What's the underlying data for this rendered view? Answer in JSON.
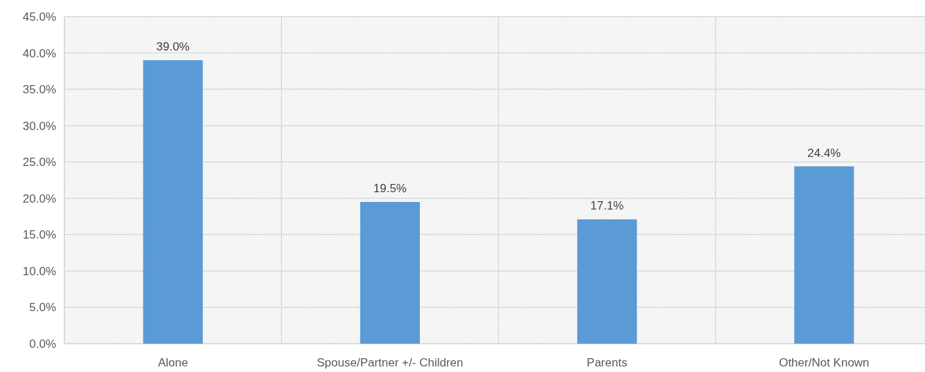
{
  "chart_data": {
    "type": "bar",
    "categories": [
      "Alone",
      "Spouse/Partner +/- Children",
      "Parents",
      "Other/Not Known"
    ],
    "values": [
      39.0,
      19.5,
      17.1,
      24.4
    ],
    "value_labels": [
      "39.0%",
      "19.5%",
      "17.1%",
      "24.4%"
    ],
    "color": "#5b9bd5",
    "ylim": [
      0,
      45
    ],
    "yticks": [
      {
        "value": 0,
        "label": "0.0%"
      },
      {
        "value": 5,
        "label": "5.0%"
      },
      {
        "value": 10,
        "label": "10.0%"
      },
      {
        "value": 15,
        "label": "15.0%"
      },
      {
        "value": 20,
        "label": "20.0%"
      },
      {
        "value": 25,
        "label": "25.0%"
      },
      {
        "value": 30,
        "label": "30.0%"
      },
      {
        "value": 35,
        "label": "35.0%"
      },
      {
        "value": 40,
        "label": "40.0%"
      },
      {
        "value": 45,
        "label": "45.0%"
      }
    ],
    "grid": true
  }
}
